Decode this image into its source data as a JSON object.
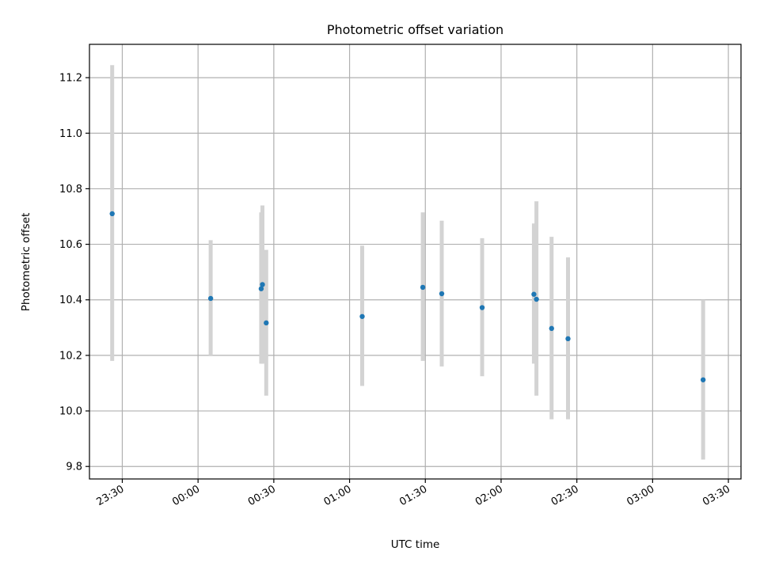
{
  "chart_data": {
    "type": "scatter",
    "title": "Photometric offset variation",
    "xlabel": "UTC time",
    "ylabel": "Photometric offset",
    "x_axis": {
      "kind": "time",
      "range": [
        "23:17",
        "03:35"
      ],
      "ticks": [
        "23:30",
        "00:00",
        "00:30",
        "01:00",
        "01:30",
        "02:00",
        "02:30",
        "03:00",
        "03:30"
      ]
    },
    "y_axis": {
      "range": [
        9.755,
        11.32
      ],
      "ticks": [
        9.8,
        10.0,
        10.2,
        10.4,
        10.6,
        10.8,
        11.0,
        11.2
      ],
      "tick_labels": [
        "9.8",
        "10.0",
        "10.2",
        "10.4",
        "10.6",
        "10.8",
        "11.0",
        "11.2"
      ]
    },
    "grid": true,
    "colors": {
      "point": "#1f77b4",
      "errorbar": "#d3d3d3",
      "grid": "#b0b0b0"
    },
    "points": [
      {
        "time": "23:26",
        "y": 10.71,
        "ylow": 10.18,
        "yhigh": 11.245
      },
      {
        "time": "00:05",
        "y": 10.405,
        "ylow": 10.2,
        "yhigh": 10.615
      },
      {
        "time": "00:25",
        "y": 10.44,
        "ylow": 10.17,
        "yhigh": 10.715
      },
      {
        "time": "00:25.5",
        "y": 10.455,
        "ylow": 10.17,
        "yhigh": 10.74
      },
      {
        "time": "00:27",
        "y": 10.317,
        "ylow": 10.055,
        "yhigh": 10.58
      },
      {
        "time": "01:05",
        "y": 10.34,
        "ylow": 10.09,
        "yhigh": 10.595
      },
      {
        "time": "01:29",
        "y": 10.445,
        "ylow": 10.18,
        "yhigh": 10.715
      },
      {
        "time": "01:36.5",
        "y": 10.422,
        "ylow": 10.16,
        "yhigh": 10.685
      },
      {
        "time": "01:52.5",
        "y": 10.372,
        "ylow": 10.125,
        "yhigh": 10.622
      },
      {
        "time": "02:13",
        "y": 10.42,
        "ylow": 10.17,
        "yhigh": 10.675
      },
      {
        "time": "02:14",
        "y": 10.402,
        "ylow": 10.055,
        "yhigh": 10.755
      },
      {
        "time": "02:20",
        "y": 10.297,
        "ylow": 9.97,
        "yhigh": 10.627
      },
      {
        "time": "02:26.5",
        "y": 10.26,
        "ylow": 9.97,
        "yhigh": 10.553
      },
      {
        "time": "03:20",
        "y": 10.112,
        "ylow": 9.825,
        "yhigh": 10.4
      }
    ]
  }
}
